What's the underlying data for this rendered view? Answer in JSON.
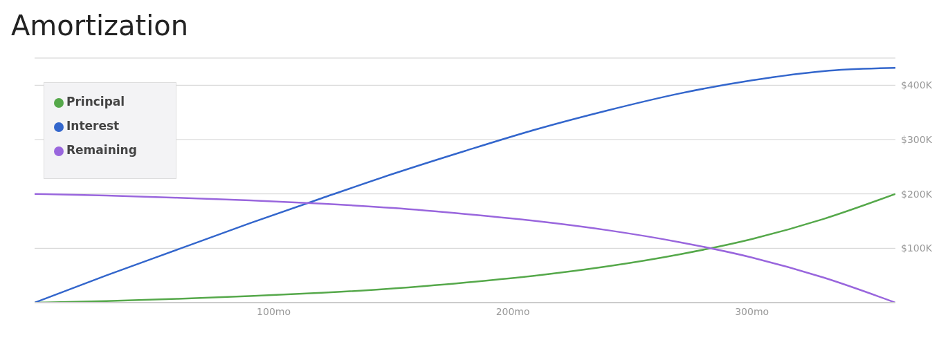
{
  "chart_data": {
    "type": "line",
    "title": "Amortization",
    "x": [
      0,
      30,
      60,
      90,
      120,
      150,
      180,
      210,
      240,
      270,
      300,
      330,
      360
    ],
    "series": [
      {
        "name": "Principal",
        "color": "#55a84a",
        "values": [
          0,
          3000,
          7000,
          12000,
          18000,
          26000,
          37000,
          50000,
          67000,
          89000,
          117000,
          154000,
          200000
        ]
      },
      {
        "name": "Interest",
        "color": "#3366cc",
        "values": [
          0,
          50000,
          98000,
          146000,
          192000,
          237000,
          279000,
          319000,
          354000,
          385000,
          409000,
          426000,
          432000
        ]
      },
      {
        "name": "Remaining",
        "color": "#9966dd",
        "values": [
          200000,
          197000,
          193000,
          188000,
          182000,
          174000,
          163000,
          150000,
          133000,
          111000,
          83000,
          46000,
          0
        ]
      }
    ],
    "xlim": [
      0,
      360
    ],
    "xticks": [
      {
        "value": 100,
        "label": "100mo"
      },
      {
        "value": 200,
        "label": "200mo"
      },
      {
        "value": 300,
        "label": "300mo"
      }
    ],
    "ylim": [
      0,
      450000
    ],
    "yticks": [
      {
        "value": 100000,
        "label": "$100K"
      },
      {
        "value": 200000,
        "label": "$200K"
      },
      {
        "value": 300000,
        "label": "$300K"
      },
      {
        "value": 400000,
        "label": "$400K"
      }
    ],
    "grid": "y",
    "legend": "top left",
    "marker": "none",
    "line_style": "solid"
  }
}
